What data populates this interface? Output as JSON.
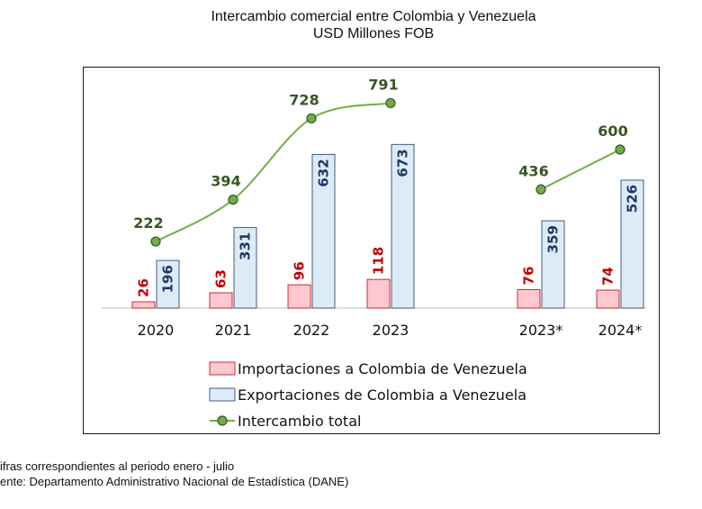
{
  "header": {
    "title": "Intercambio comercial entre Colombia y Venezuela",
    "subtitle": "USD Millones FOB"
  },
  "footer": {
    "note1": "ifras correspondientes al periodo enero - julio",
    "note2": "ente: Departamento Administrativo Nacional de Estadística (DANE)"
  },
  "colors": {
    "imports_fill": "#FFC7CE",
    "imports_stroke": "#C00000",
    "imports_label": "#C00000",
    "exports_fill": "#DDEBF7",
    "exports_stroke": "#1F3864",
    "exports_label": "#1F3864",
    "total_line": "#70AD47",
    "total_marker_fill": "#70AD47",
    "total_marker_stroke": "#375623",
    "total_label": "#375623"
  },
  "chart_data": {
    "type": "bar",
    "categories": [
      "2020",
      "2021",
      "2022",
      "2023",
      "2023*",
      "2024*"
    ],
    "series": [
      {
        "name": "Importaciones a Colombia de Venezuela",
        "type": "bar",
        "values": [
          26,
          63,
          96,
          118,
          76,
          74
        ]
      },
      {
        "name": "Exportaciones de Colombia a Venezuela",
        "type": "bar",
        "values": [
          196,
          331,
          632,
          673,
          359,
          526
        ]
      },
      {
        "name": "Intercambio total",
        "type": "line",
        "values": [
          222,
          394,
          728,
          791,
          436,
          600
        ]
      }
    ],
    "legend_position": "bottom",
    "grid": false,
    "ylim": [
      0,
      850
    ],
    "gap_after_category": "2023"
  }
}
